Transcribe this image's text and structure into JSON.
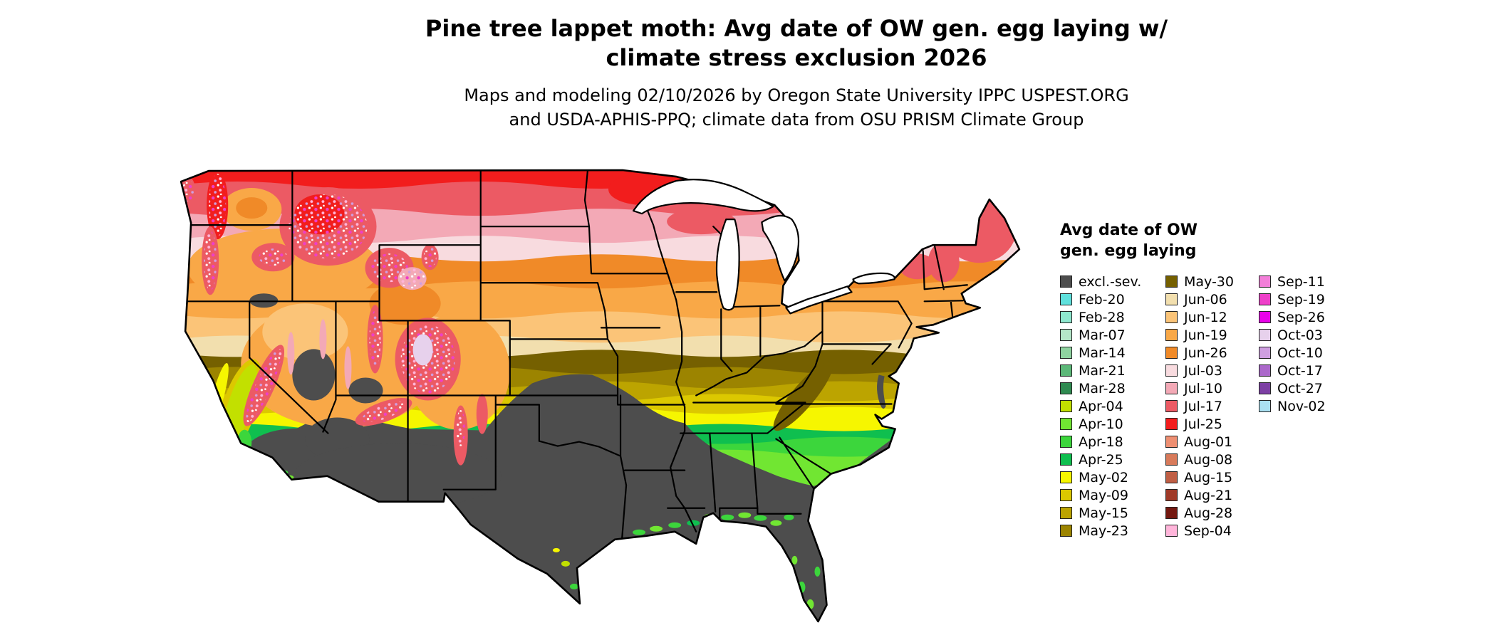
{
  "header": {
    "title": "Pine tree lappet moth: Avg date of OW gen. egg laying w/ climate stress exclusion 2026",
    "subtitle": "Maps and modeling 02/10/2026 by Oregon State University IPPC USPEST.ORG and USDA-APHIS-PPQ; climate data from OSU PRISM Climate Group"
  },
  "legend": {
    "title_line1": "Avg date of OW",
    "title_line2": "gen. egg laying",
    "columns": [
      [
        {
          "label": "excl.-sev.",
          "key": "excl"
        },
        {
          "label": "Feb-20",
          "key": "feb20"
        },
        {
          "label": "Feb-28",
          "key": "feb28"
        },
        {
          "label": "Mar-07",
          "key": "mar07"
        },
        {
          "label": "Mar-14",
          "key": "mar14"
        },
        {
          "label": "Mar-21",
          "key": "mar21"
        },
        {
          "label": "Mar-28",
          "key": "mar28"
        },
        {
          "label": "Apr-04",
          "key": "apr04"
        },
        {
          "label": "Apr-10",
          "key": "apr10"
        },
        {
          "label": "Apr-18",
          "key": "apr18"
        },
        {
          "label": "Apr-25",
          "key": "apr25"
        },
        {
          "label": "May-02",
          "key": "may02"
        },
        {
          "label": "May-09",
          "key": "may09"
        },
        {
          "label": "May-15",
          "key": "may15"
        },
        {
          "label": "May-23",
          "key": "may23"
        }
      ],
      [
        {
          "label": "May-30",
          "key": "may30"
        },
        {
          "label": "Jun-06",
          "key": "jun06"
        },
        {
          "label": "Jun-12",
          "key": "jun12"
        },
        {
          "label": "Jun-19",
          "key": "jun19"
        },
        {
          "label": "Jun-26",
          "key": "jun26"
        },
        {
          "label": "Jul-03",
          "key": "jul03"
        },
        {
          "label": "Jul-10",
          "key": "jul10"
        },
        {
          "label": "Jul-17",
          "key": "jul17"
        },
        {
          "label": "Jul-25",
          "key": "jul25"
        },
        {
          "label": "Aug-01",
          "key": "aug01"
        },
        {
          "label": "Aug-08",
          "key": "aug08"
        },
        {
          "label": "Aug-15",
          "key": "aug15"
        },
        {
          "label": "Aug-21",
          "key": "aug21"
        },
        {
          "label": "Aug-28",
          "key": "aug28"
        },
        {
          "label": "Sep-04",
          "key": "sep04"
        }
      ],
      [
        {
          "label": "Sep-11",
          "key": "sep11"
        },
        {
          "label": "Sep-19",
          "key": "sep19"
        },
        {
          "label": "Sep-26",
          "key": "sep26"
        },
        {
          "label": "Oct-03",
          "key": "oct03"
        },
        {
          "label": "Oct-10",
          "key": "oct10"
        },
        {
          "label": "Oct-17",
          "key": "oct17"
        },
        {
          "label": "Oct-27",
          "key": "oct27"
        },
        {
          "label": "Nov-02",
          "key": "nov02"
        }
      ]
    ]
  },
  "palette": {
    "excl": "#4d4d4d",
    "feb20": "#5fe0dc",
    "feb28": "#8ee8cf",
    "mar07": "#b4e6c8",
    "mar14": "#8fd3a0",
    "mar21": "#5cb878",
    "mar28": "#2f8a50",
    "apr04": "#c2e000",
    "apr10": "#71e632",
    "apr18": "#3cd63c",
    "apr25": "#0fbf4f",
    "may02": "#f6f600",
    "may09": "#dcc800",
    "may15": "#bca400",
    "may23": "#9c8400",
    "may30": "#756000",
    "jun06": "#f2dfae",
    "jun12": "#fbc478",
    "jun19": "#f9a847",
    "jun26": "#f08a28",
    "jul03": "#f8dbdf",
    "jul10": "#f3a9b6",
    "jul17": "#ec5a64",
    "jul25": "#f21d1d",
    "aug01": "#ee8f72",
    "aug08": "#d87a5a",
    "aug15": "#c05f45",
    "aug21": "#a03a28",
    "aug28": "#741810",
    "sep04": "#ffb5da",
    "sep11": "#f37fd9",
    "sep19": "#ee3fc9",
    "sep26": "#e900e9",
    "oct03": "#e7d1ec",
    "oct10": "#cf9fe0",
    "oct17": "#ab68ca",
    "oct27": "#7d3fa4",
    "nov02": "#abe1f3"
  }
}
